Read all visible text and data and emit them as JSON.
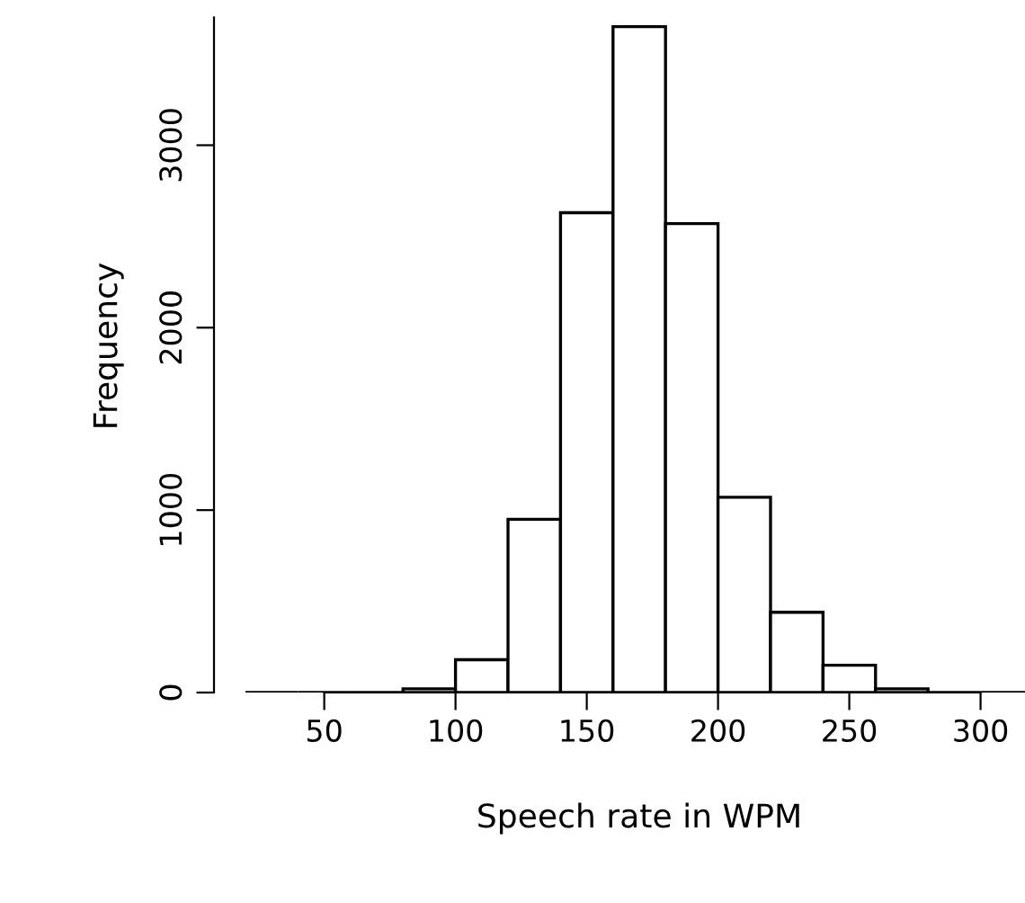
{
  "chart_data": {
    "type": "histogram",
    "xlabel": "Speech rate in WPM",
    "ylabel": "Frequency",
    "bins": [
      20,
      40,
      60,
      80,
      100,
      120,
      140,
      160,
      180,
      200,
      220,
      240,
      260,
      280,
      300,
      320
    ],
    "values": [
      0,
      0,
      0,
      20,
      180,
      950,
      2630,
      3650,
      2570,
      1070,
      440,
      150,
      20,
      0,
      0
    ],
    "xlim": [
      50,
      300
    ],
    "ylim": [
      0,
      3700
    ],
    "xticks": [
      50,
      100,
      150,
      200,
      250,
      300
    ],
    "yticks": [
      0,
      1000,
      2000,
      3000
    ],
    "grid": false
  }
}
